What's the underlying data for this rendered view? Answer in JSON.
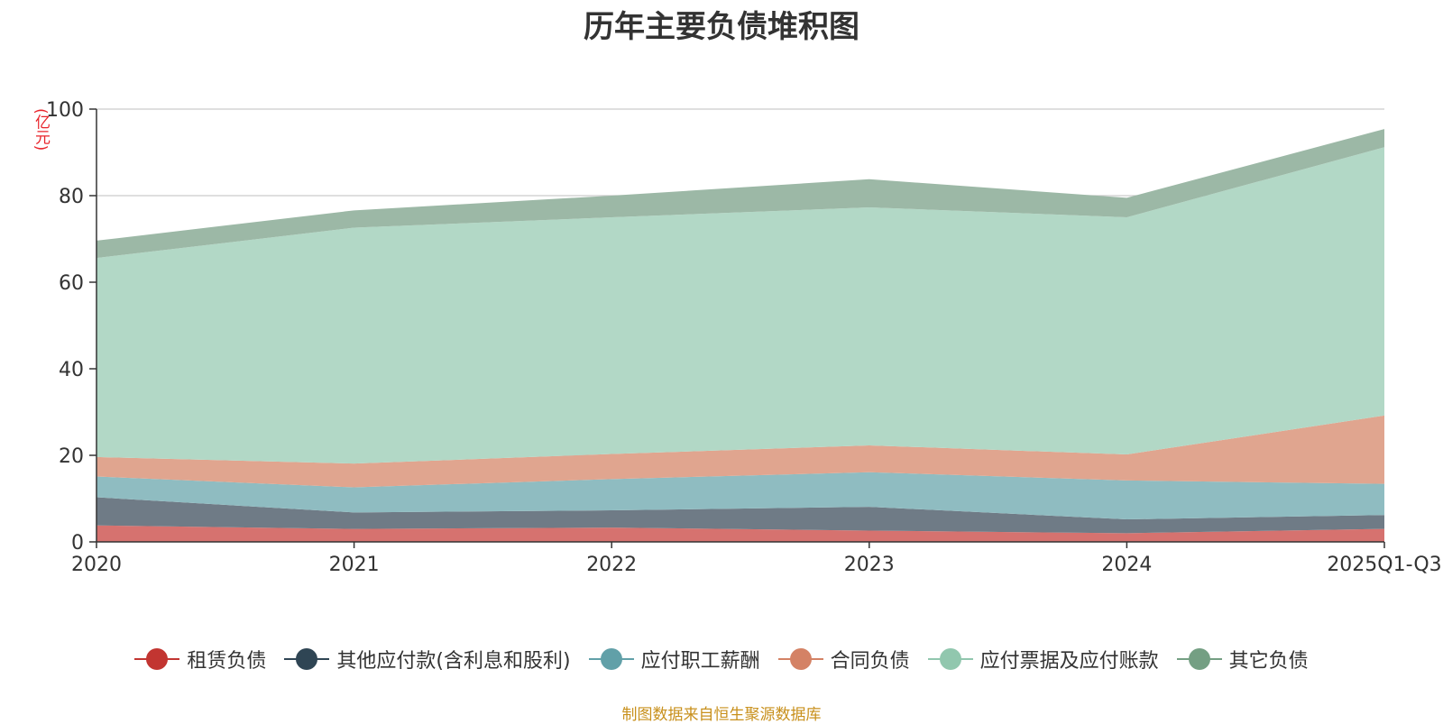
{
  "chart_data": {
    "type": "area",
    "title": "历年主要负债堆积图",
    "unit": "(亿元)",
    "categories": [
      "2020",
      "2021",
      "2022",
      "2023",
      "2024",
      "2025Q1-Q3"
    ],
    "ylim": [
      0,
      100
    ],
    "yticks": [
      0,
      20,
      40,
      60,
      80,
      100
    ],
    "grid": true,
    "legend_position": "bottom",
    "stacked": true,
    "series": [
      {
        "name": "租赁负债",
        "color": "#c23531",
        "fill": "#d6726f",
        "values": [
          3.8,
          3.0,
          3.3,
          2.6,
          2.0,
          3.0
        ]
      },
      {
        "name": "其他应付款(含利息和股利)",
        "color": "#2f4554",
        "fill": "#6f7b86",
        "values": [
          6.5,
          3.8,
          4.0,
          5.5,
          3.2,
          3.2
        ]
      },
      {
        "name": "应付职工薪酬",
        "color": "#61a0a8",
        "fill": "#8fbcc1",
        "values": [
          4.8,
          5.8,
          7.2,
          8.0,
          9.0,
          7.2
        ]
      },
      {
        "name": "合同负债",
        "color": "#d48265",
        "fill": "#e0a58f",
        "values": [
          4.5,
          5.5,
          5.8,
          6.2,
          6.0,
          15.8
        ]
      },
      {
        "name": "应付票据及应付账款",
        "color": "#91c7ae",
        "fill": "#b2d8c6",
        "values": [
          46.0,
          54.5,
          54.7,
          55.0,
          54.8,
          62.0
        ]
      },
      {
        "name": "其它负债",
        "color": "#749f83",
        "fill": "#9cb8a6",
        "values": [
          4.0,
          4.0,
          5.0,
          6.5,
          4.5,
          4.2
        ]
      }
    ]
  },
  "source_note": "制图数据来自恒生聚源数据库"
}
